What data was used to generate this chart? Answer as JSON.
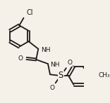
{
  "background_color": "#f5f0e8",
  "line_color": "#1a1a1a",
  "line_width": 1.3,
  "font_size": 6.5,
  "figsize": [
    1.56,
    1.47
  ],
  "dpi": 100,
  "xlim": [
    0,
    156
  ],
  "ylim": [
    0,
    147
  ]
}
